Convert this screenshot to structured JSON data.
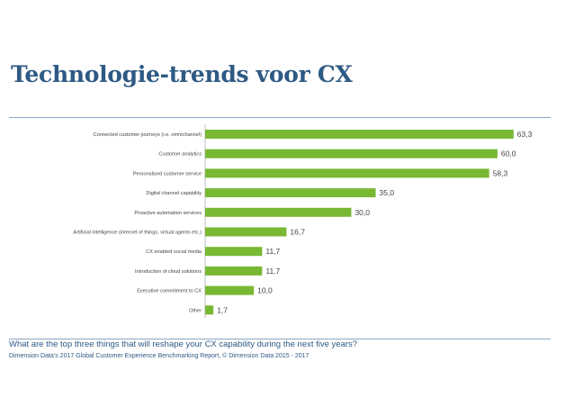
{
  "page": {
    "title": "Technologie-trends voor CX",
    "question": "What are the top three things that will reshape your CX capability during the next five years?",
    "source": "Dimension Data’s 2017 Global Customer Experience Benchmarking Report, © Dimension Data 2015 - 2017"
  },
  "colors": {
    "bar": "#78b833",
    "title": "#2e5a84",
    "rule": "#8aa8c4"
  },
  "chart_data": {
    "type": "bar",
    "orientation": "horizontal",
    "categories": [
      "Connected customer journeys (i.e. omnichannel)",
      "Customer analytics",
      "Personalised customer service",
      "Digital channel capability",
      "Proactive automation services",
      "Artificial intelligence (internet of things, virtual agents etc.)",
      "CX enabled social media",
      "Introduction of cloud solutions",
      "Executive commitment to CX",
      "Other"
    ],
    "values": [
      63.3,
      60.0,
      58.3,
      35.0,
      30.0,
      16.7,
      11.7,
      11.7,
      10.0,
      1.7
    ],
    "value_labels": [
      "63,3",
      "60,0",
      "58,3",
      "35,0",
      "30,0",
      "16,7",
      "11,7",
      "11,7",
      "10,0",
      "1,7"
    ],
    "xlim": [
      0,
      65
    ],
    "grid": false,
    "legend": "none",
    "title": "",
    "xlabel": "",
    "ylabel": ""
  }
}
